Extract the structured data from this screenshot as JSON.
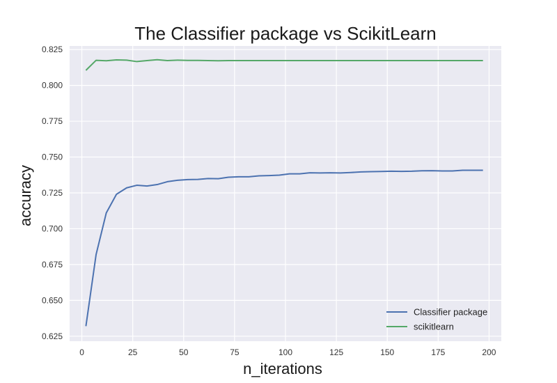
{
  "chart_data": {
    "type": "line",
    "title": "The Classifier package vs ScikitLearn",
    "xlabel": "n_iterations",
    "ylabel": "accuracy",
    "xlim": [
      -6,
      206
    ],
    "ylim": [
      0.6215,
      0.8275
    ],
    "xticks": [
      0,
      25,
      50,
      75,
      100,
      125,
      150,
      175,
      200
    ],
    "yticks": [
      0.625,
      0.65,
      0.675,
      0.7,
      0.725,
      0.75,
      0.775,
      0.8,
      0.825
    ],
    "xtick_labels": [
      "0",
      "25",
      "50",
      "75",
      "100",
      "125",
      "150",
      "175",
      "200"
    ],
    "ytick_labels": [
      "0.625",
      "0.650",
      "0.675",
      "0.700",
      "0.725",
      "0.750",
      "0.775",
      "0.800",
      "0.825"
    ],
    "grid": true,
    "legend_position": "bottom-right",
    "x": [
      2,
      7,
      12,
      17,
      22,
      27,
      32,
      37,
      42,
      47,
      52,
      57,
      62,
      67,
      72,
      77,
      82,
      87,
      92,
      97,
      102,
      107,
      112,
      117,
      122,
      127,
      132,
      137,
      142,
      147,
      152,
      157,
      162,
      167,
      172,
      177,
      182,
      187,
      192,
      197
    ],
    "series": [
      {
        "name": "Classifier package",
        "color": "#4c72b0",
        "values": [
          0.632,
          0.682,
          0.711,
          0.724,
          0.7285,
          0.7303,
          0.7298,
          0.7308,
          0.7328,
          0.7338,
          0.7343,
          0.7344,
          0.735,
          0.7349,
          0.7359,
          0.7362,
          0.7362,
          0.7369,
          0.7371,
          0.7374,
          0.7383,
          0.7383,
          0.739,
          0.7389,
          0.739,
          0.7389,
          0.7392,
          0.7396,
          0.7398,
          0.7399,
          0.7401,
          0.74,
          0.7401,
          0.7404,
          0.7405,
          0.7403,
          0.7403,
          0.7408,
          0.7408,
          0.7408
        ]
      },
      {
        "name": "scikitlearn",
        "color": "#55a868",
        "values": [
          0.8105,
          0.8175,
          0.8172,
          0.8178,
          0.8176,
          0.8166,
          0.8173,
          0.8179,
          0.8173,
          0.8176,
          0.8174,
          0.8174,
          0.8173,
          0.8172,
          0.8173,
          0.8173,
          0.8173,
          0.8173,
          0.8173,
          0.8173,
          0.8173,
          0.8173,
          0.8173,
          0.8173,
          0.8173,
          0.8173,
          0.8173,
          0.8173,
          0.8173,
          0.8173,
          0.8173,
          0.8173,
          0.8173,
          0.8173,
          0.8173,
          0.8173,
          0.8173,
          0.8173,
          0.8173,
          0.8173
        ]
      }
    ]
  },
  "colors": {
    "plot_background": "#eaeaf2",
    "grid": "#ffffff"
  }
}
